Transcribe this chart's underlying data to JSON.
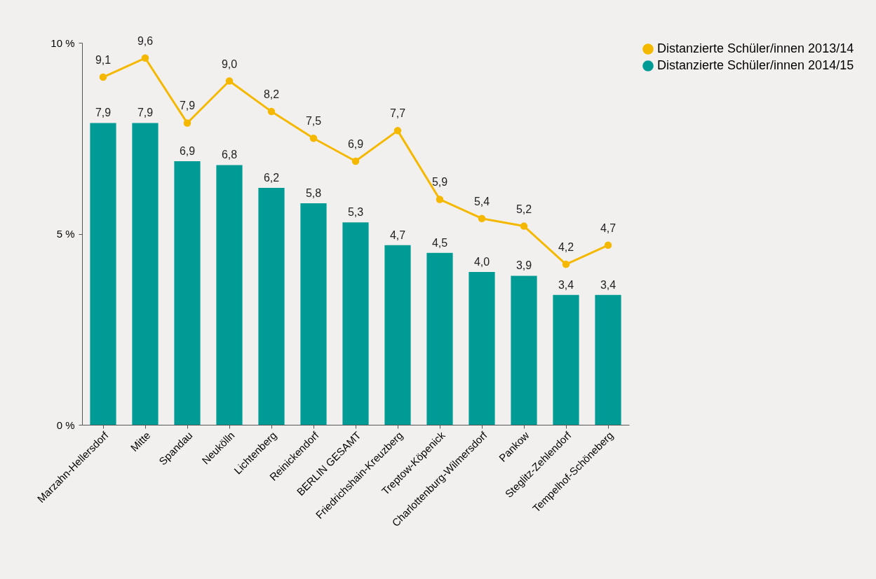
{
  "chart_data": {
    "type": "bar",
    "categories": [
      "Marzahn-Hellersdorf",
      "Mitte",
      "Spandau",
      "Neukölln",
      "Lichtenberg",
      "Reinickendorf",
      "BERLIN GESAMT",
      "Friedrichshain-Kreuzberg",
      "Treptow-Köpenick",
      "Charlottenburg-Wilmersdorf",
      "Pankow",
      "Steglitz-Zehlendorf",
      "Tempelhof-Schöneberg"
    ],
    "series": [
      {
        "name": "Distanzierte Schüler/innen 2013/14",
        "type": "line",
        "color": "#f5b800",
        "values": [
          9.1,
          9.6,
          7.9,
          9.0,
          8.2,
          7.5,
          6.9,
          7.7,
          5.9,
          5.4,
          5.2,
          4.2,
          4.7
        ],
        "value_labels": [
          "9,1",
          "9,6",
          "7,9",
          "9,0",
          "8,2",
          "7,5",
          "6,9",
          "7,7",
          "5,9",
          "5,4",
          "5,2",
          "4,2",
          "4,7"
        ]
      },
      {
        "name": "Distanzierte Schüler/innen 2014/15",
        "color": "#009b95",
        "values": [
          7.9,
          7.9,
          6.9,
          6.8,
          6.2,
          5.8,
          5.3,
          4.7,
          4.5,
          4.0,
          3.9,
          3.4,
          3.4
        ],
        "value_labels": [
          "7,9",
          "7,9",
          "6,9",
          "6,8",
          "6,2",
          "5,8",
          "5,3",
          "4,7",
          "4,5",
          "4,0",
          "3,9",
          "3,4",
          "3,4"
        ]
      }
    ],
    "ylim": [
      0,
      10
    ],
    "yticks": [
      {
        "value": 0,
        "label": "0 %"
      },
      {
        "value": 5,
        "label": "5 %"
      },
      {
        "value": 10,
        "label": "10 %"
      }
    ],
    "legend": "top right",
    "marker": "circle",
    "line_style": "solid",
    "grid": false
  }
}
